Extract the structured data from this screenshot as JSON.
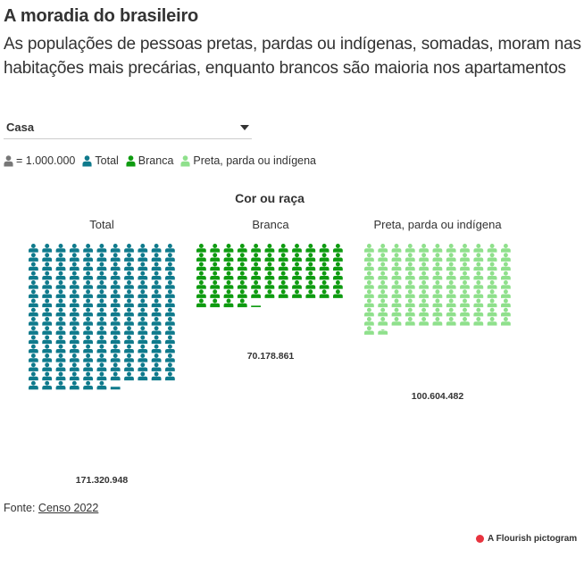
{
  "header": {
    "title": "A moradia do brasileiro",
    "subtitle": "As populações de pessoas pretas, pardas ou indígenas, somadas, moram nas habitações mais precárias, enquanto brancos são maioria nos apartamentos"
  },
  "filter": {
    "selected": "Casa"
  },
  "legend": {
    "unit_label": "= 1.000.000",
    "unit_color": "#777777",
    "items": [
      {
        "label": "Total",
        "color": "#0f7a8c"
      },
      {
        "label": "Branca",
        "color": "#0e9b10"
      },
      {
        "label": "Preta, parda ou indígena",
        "color": "#8fe08c"
      }
    ]
  },
  "chart_data": {
    "type": "pictogram",
    "title": "Cor ou raça",
    "unit_per_icon": 1000000,
    "icon": "person-icon",
    "columns_per_row": 11,
    "series": [
      {
        "name": "Total",
        "value": 171320948,
        "value_label": "171.320.948",
        "color": "#0f7a8c"
      },
      {
        "name": "Branca",
        "value": 70178861,
        "value_label": "70.178.861",
        "color": "#0e9b10"
      },
      {
        "name": "Preta, parda ou indígena",
        "value": 100604482,
        "value_label": "100.604.482",
        "color": "#8fe08c"
      }
    ]
  },
  "footer": {
    "source_prefix": "Fonte:",
    "source_link": "Censo 2022",
    "credit": "A Flourish pictogram"
  }
}
